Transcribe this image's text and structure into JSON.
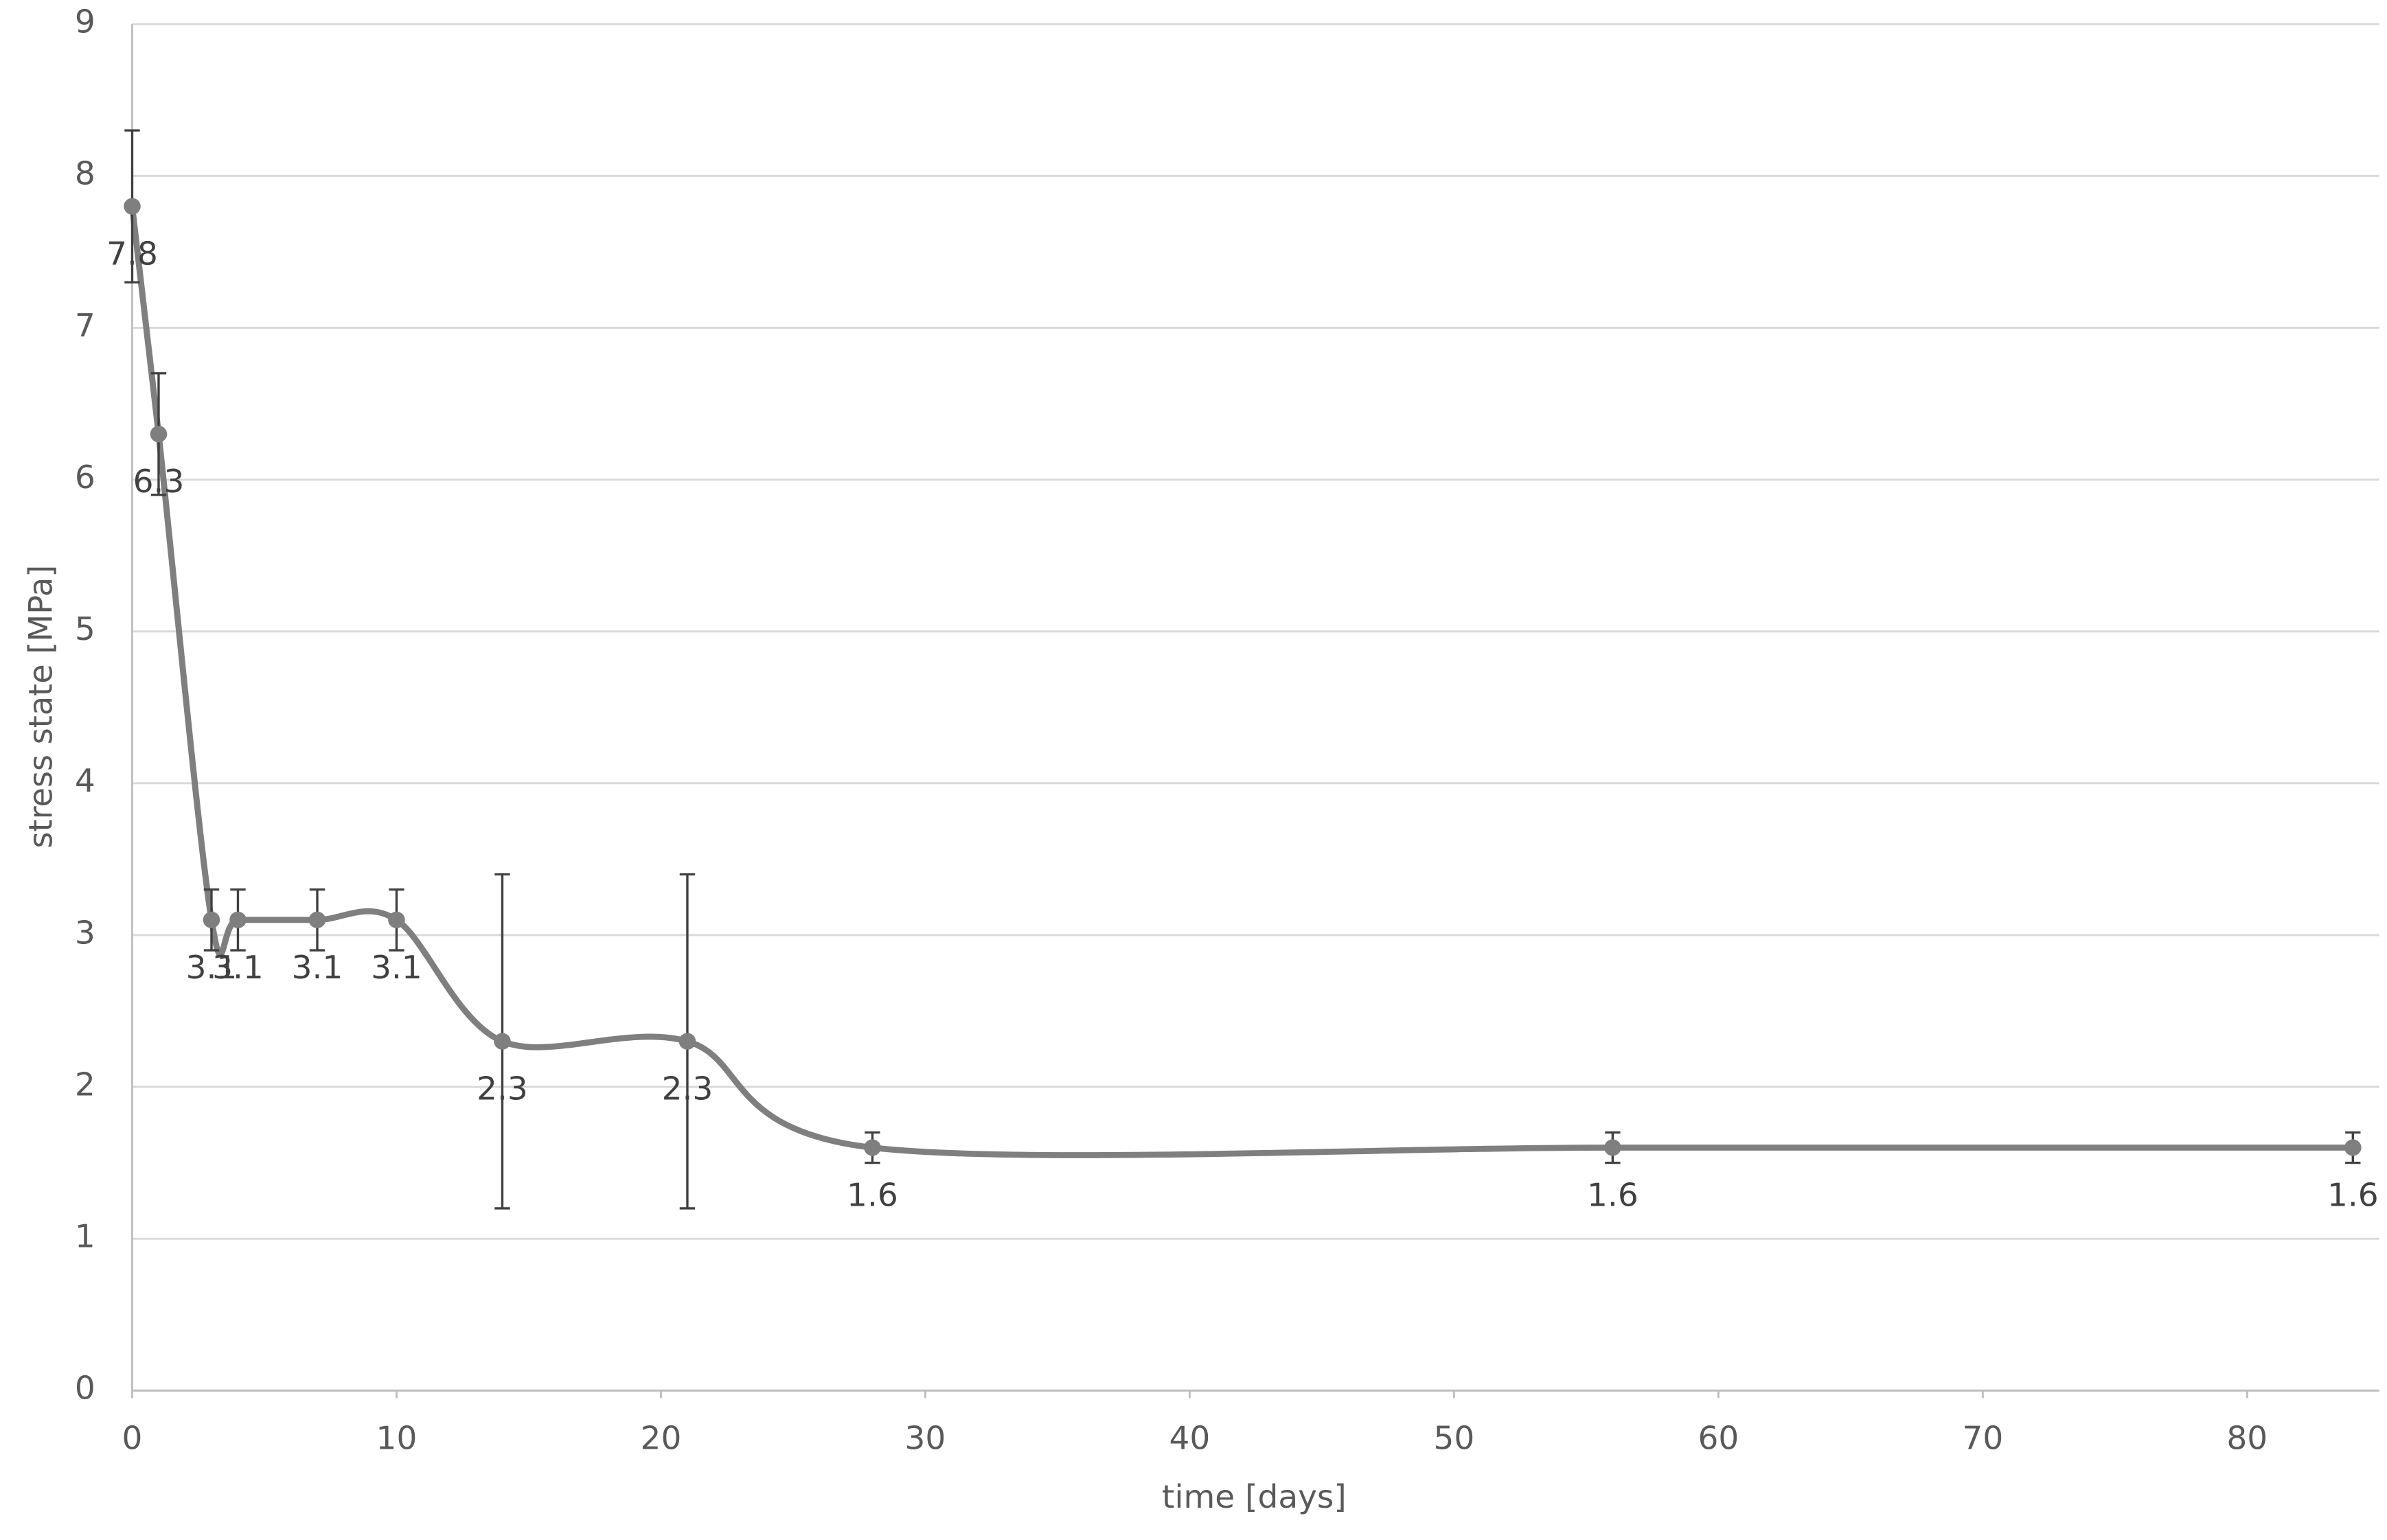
{
  "chart_data": {
    "type": "line",
    "x_label": "time [days]",
    "y_label": "stress state [MPa]",
    "x": [
      0,
      1,
      3,
      4,
      7,
      10,
      14,
      21,
      28,
      56,
      84
    ],
    "series": [
      {
        "color": "#7f7f7f",
        "values": [
          7.8,
          6.3,
          3.1,
          3.1,
          3.1,
          3.1,
          2.3,
          2.3,
          1.6,
          1.6,
          1.6
        ],
        "errors": [
          0.5,
          0.4,
          0.2,
          0.2,
          0.2,
          0.2,
          1.1,
          1.1,
          0.1,
          0.1,
          0.1
        ]
      }
    ],
    "xlim": [
      0,
      85
    ],
    "xticks": [
      0,
      10,
      20,
      30,
      40,
      50,
      60,
      70,
      80
    ],
    "ylim": [
      0,
      9
    ],
    "yticks": [
      0,
      1,
      2,
      3,
      4,
      5,
      6,
      7,
      8,
      9
    ],
    "grid": true,
    "smooth": true
  }
}
